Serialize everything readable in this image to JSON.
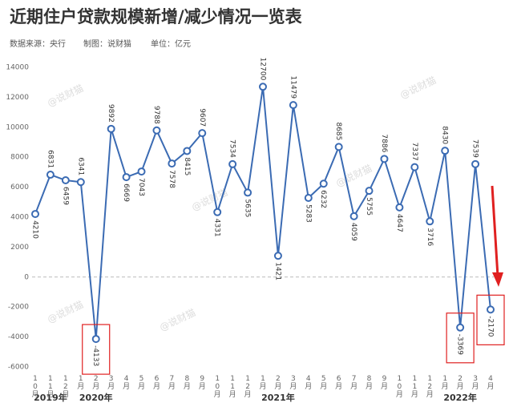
{
  "chart_data": {
    "type": "line",
    "title": "近期住户贷款规模新增/减少情况一览表",
    "source": "数据来源：央行",
    "author": "制图：说财猫",
    "unit": "单位：亿元",
    "watermark": "@说财猫",
    "categories": [
      "10月",
      "11月",
      "12月",
      "1月",
      "2月",
      "3月",
      "4月",
      "5月",
      "6月",
      "7月",
      "8月",
      "9月",
      "10月",
      "11月",
      "12月",
      "1月",
      "2月",
      "3月",
      "4月",
      "5月",
      "6月",
      "7月",
      "8月",
      "9月",
      "10月",
      "11月",
      "12月",
      "1月",
      "2月",
      "3月",
      "4月"
    ],
    "years": [
      "2019年",
      "2020年",
      "2021年",
      "2022年"
    ],
    "series": [
      {
        "name": "住户贷款",
        "color": "#3b6bb3",
        "values": [
          4210,
          6831,
          6459,
          6341,
          -4133,
          9892,
          6669,
          7043,
          9788,
          7578,
          8415,
          9607,
          4331,
          7534,
          5635,
          12700,
          1421,
          11479,
          5283,
          6232,
          8685,
          4059,
          5755,
          7886,
          4647,
          7337,
          3716,
          8430,
          -3369,
          7539,
          -2170
        ]
      }
    ],
    "ylim": [
      -6000,
      14000
    ],
    "yticks": [
      -6000,
      -4000,
      -2000,
      0,
      2000,
      4000,
      6000,
      8000,
      10000,
      12000,
      14000
    ],
    "grid": false
  }
}
